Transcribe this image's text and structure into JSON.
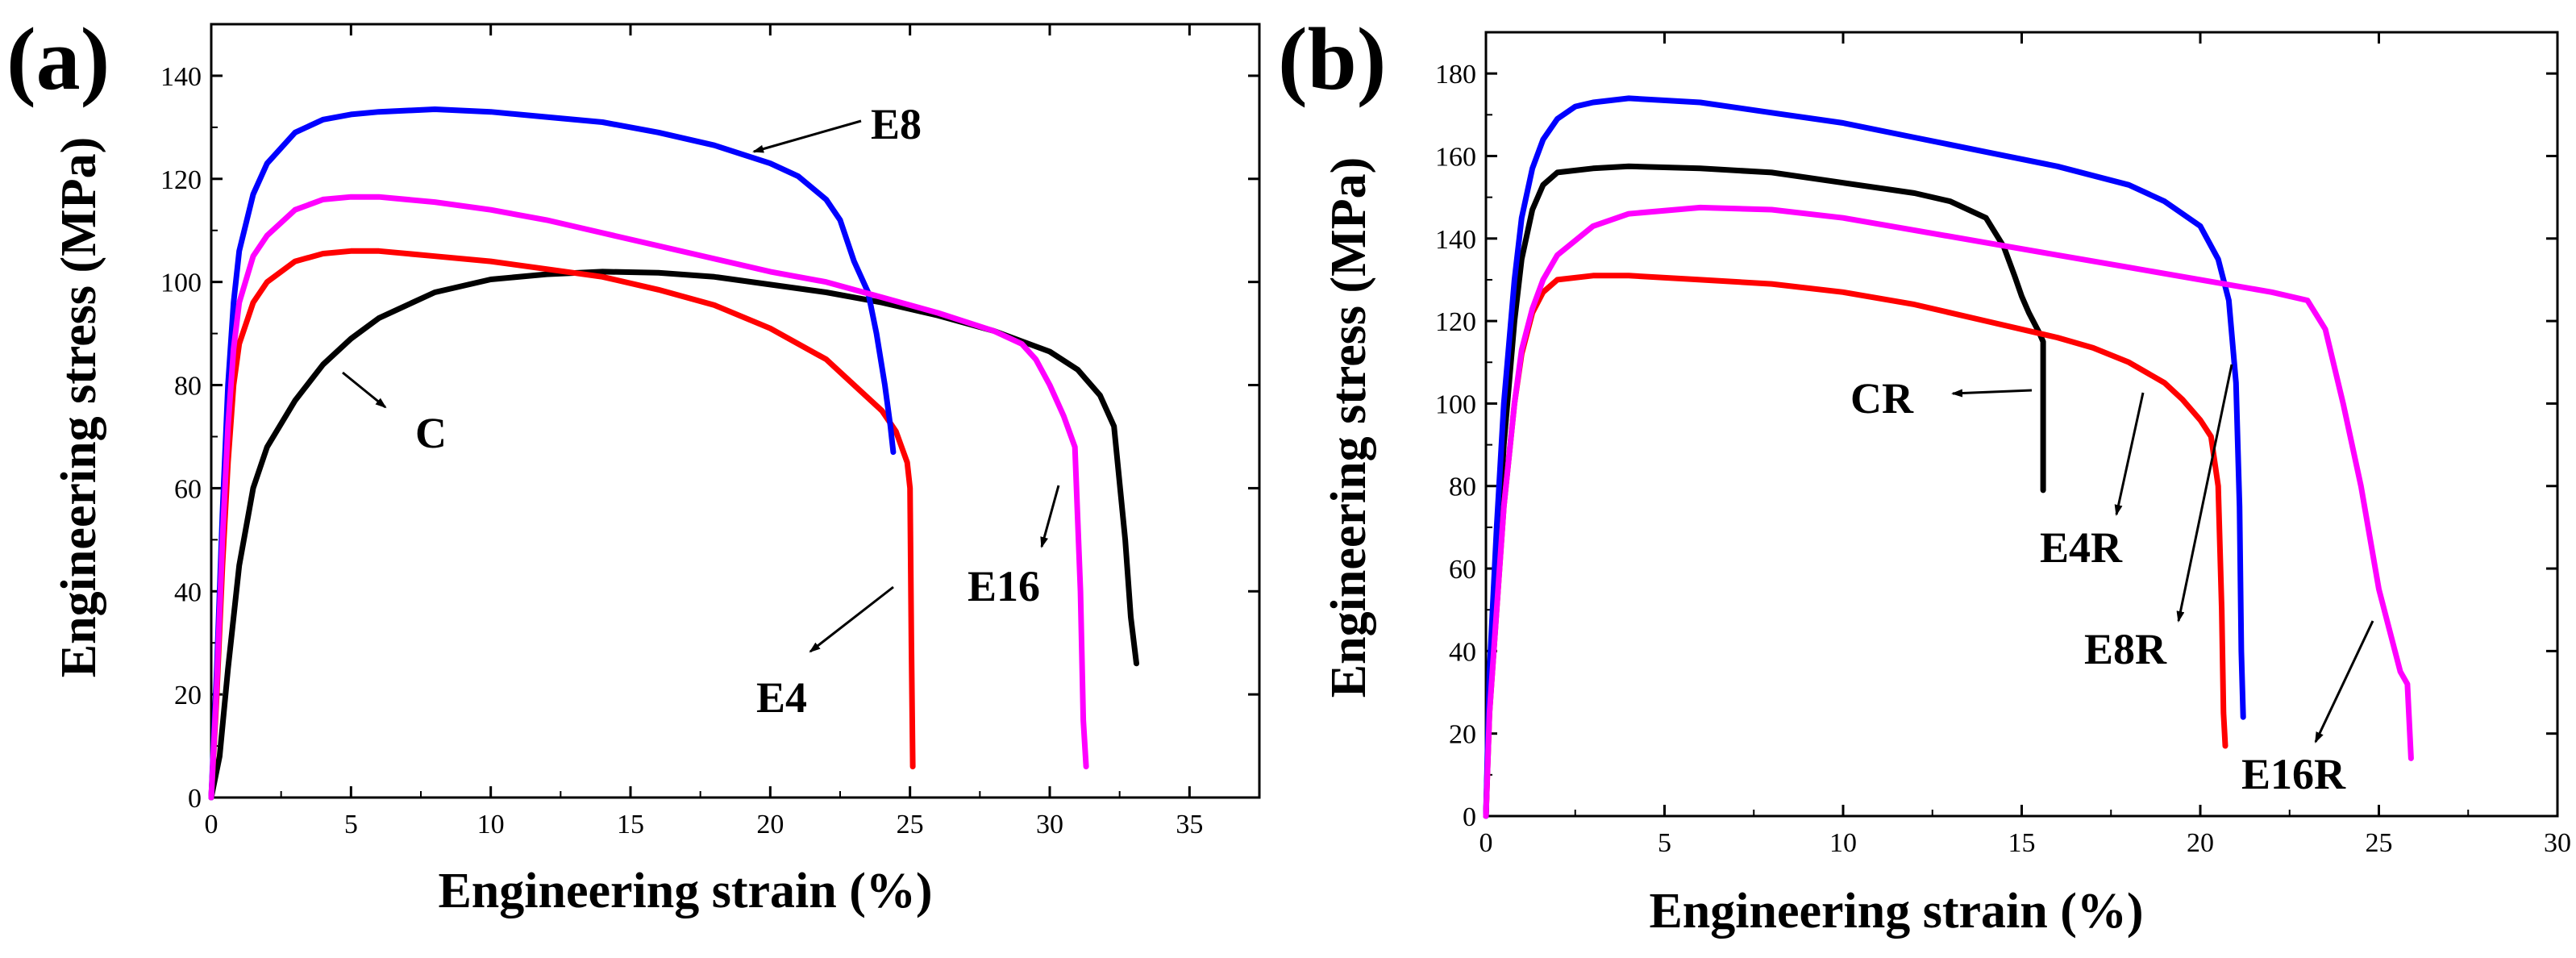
{
  "chart_data": [
    {
      "panel_label": "(a)",
      "type": "line",
      "xlabel": "Engineering strain (%)",
      "ylabel": "Engineering stress (MPa)",
      "xlim": [
        0,
        37.5
      ],
      "ylim": [
        0,
        150
      ],
      "xticks": [
        "0",
        "5",
        "10",
        "15",
        "20",
        "25",
        "30",
        "35"
      ],
      "yticks": [
        "0",
        "20",
        "40",
        "60",
        "80",
        "100",
        "120",
        "140"
      ],
      "grid": false,
      "legend": "none",
      "series": [
        {
          "name": "C",
          "color": "#000000",
          "x": [
            0,
            0.3,
            0.6,
            1,
            1.5,
            2,
            3,
            4,
            5,
            6,
            8,
            10,
            12,
            14,
            16,
            18,
            20,
            22,
            24,
            26,
            28,
            30,
            31,
            31.8,
            32.3,
            32.7,
            32.9,
            33.1
          ],
          "y": [
            0,
            8,
            25,
            45,
            60,
            68,
            77,
            84,
            89,
            93,
            98,
            100.5,
            101.5,
            102,
            101.8,
            101,
            99.5,
            98,
            96,
            93.5,
            90.5,
            86.5,
            83,
            78,
            72,
            50,
            35,
            26
          ]
        },
        {
          "name": "E4",
          "color": "#ff0000",
          "x": [
            0,
            0.2,
            0.4,
            0.6,
            0.8,
            1,
            1.5,
            2,
            3,
            4,
            5,
            6,
            8,
            10,
            12,
            14,
            16,
            18,
            20,
            21,
            22,
            23,
            24,
            24.5,
            24.9,
            25,
            25.05,
            25.1
          ],
          "y": [
            0,
            20,
            45,
            65,
            80,
            88,
            96,
            100,
            104,
            105.5,
            106,
            106,
            105,
            104,
            102.5,
            101,
            98.5,
            95.5,
            91,
            88,
            85,
            80,
            75,
            71,
            65,
            60,
            30,
            6
          ]
        },
        {
          "name": "E8",
          "color": "#0000ff",
          "x": [
            0,
            0.2,
            0.4,
            0.6,
            0.8,
            1,
            1.5,
            2,
            3,
            4,
            5,
            6,
            8,
            10,
            12,
            14,
            16,
            18,
            20,
            21,
            22,
            22.5,
            23,
            23.5,
            23.8,
            24.1,
            24.3,
            24.4
          ],
          "y": [
            0,
            25,
            55,
            80,
            96,
            106,
            117,
            123,
            129,
            131.5,
            132.5,
            133,
            133.5,
            133,
            132,
            131,
            129,
            126.5,
            123,
            120.5,
            116,
            112,
            104,
            98,
            90,
            80,
            72,
            67
          ]
        },
        {
          "name": "E16",
          "color": "#ff00ff",
          "x": [
            0,
            0.2,
            0.4,
            0.6,
            0.8,
            1,
            1.5,
            2,
            3,
            4,
            5,
            6,
            8,
            10,
            12,
            14,
            16,
            18,
            20,
            22,
            24,
            26,
            28,
            29,
            29.5,
            30,
            30.5,
            30.9,
            31.1,
            31.2,
            31.3
          ],
          "y": [
            0,
            22,
            50,
            72,
            87,
            96,
            105,
            109,
            114,
            116,
            116.5,
            116.5,
            115.5,
            114,
            112,
            109.5,
            107,
            104.5,
            102,
            100,
            97,
            94,
            90.5,
            88,
            85,
            80,
            74,
            68,
            40,
            15,
            6
          ]
        }
      ],
      "annotations": [
        {
          "text": "E8",
          "series": "E8"
        },
        {
          "text": "C",
          "series": "C"
        },
        {
          "text": "E16",
          "series": "E16"
        },
        {
          "text": "E4",
          "series": "E4"
        }
      ]
    },
    {
      "panel_label": "(b)",
      "type": "line",
      "xlabel": "Engineering strain (%)",
      "ylabel": "Engineering stress (MPa)",
      "xlim": [
        0,
        30
      ],
      "ylim": [
        0,
        190
      ],
      "xticks": [
        "0",
        "5",
        "10",
        "15",
        "20",
        "25",
        "30"
      ],
      "yticks": [
        "0",
        "20",
        "40",
        "60",
        "80",
        "100",
        "120",
        "140",
        "160",
        "180"
      ],
      "grid": false,
      "legend": "none",
      "series": [
        {
          "name": "CR",
          "color": "#000000",
          "x": [
            0,
            0.1,
            0.3,
            0.5,
            0.8,
            1,
            1.3,
            1.6,
            2,
            3,
            4,
            6,
            8,
            10,
            12,
            13,
            14,
            14.5,
            14.8,
            15,
            15.2,
            15.5,
            15.6,
            15.6
          ],
          "y": [
            0,
            30,
            60,
            90,
            120,
            135,
            147,
            153,
            156,
            157,
            157.5,
            157,
            156,
            153.5,
            151,
            149,
            145,
            138,
            131,
            126,
            122,
            117,
            115,
            79
          ]
        },
        {
          "name": "E4R",
          "color": "#ff0000",
          "x": [
            0,
            0.1,
            0.3,
            0.5,
            0.8,
            1,
            1.3,
            1.6,
            2,
            3,
            4,
            6,
            8,
            10,
            12,
            14,
            16,
            17,
            18,
            19,
            19.5,
            20,
            20.3,
            20.5,
            20.6,
            20.65,
            20.7
          ],
          "y": [
            0,
            25,
            50,
            75,
            100,
            112,
            122,
            127,
            130,
            131,
            131,
            130,
            129,
            127,
            124,
            120,
            116,
            113.5,
            110,
            105,
            101,
            96,
            92,
            80,
            50,
            25,
            17
          ]
        },
        {
          "name": "E8R",
          "color": "#0000ff",
          "x": [
            0,
            0.1,
            0.3,
            0.5,
            0.8,
            1,
            1.3,
            1.6,
            2,
            2.5,
            3,
            4,
            6,
            8,
            10,
            12,
            14,
            16,
            18,
            19,
            20,
            20.5,
            20.8,
            21,
            21.1,
            21.15,
            21.2
          ],
          "y": [
            0,
            35,
            70,
            100,
            130,
            145,
            157,
            164,
            169,
            172,
            173,
            174,
            173,
            170.5,
            168,
            164.5,
            161,
            157.5,
            153,
            149,
            143,
            135,
            125,
            105,
            75,
            40,
            24
          ]
        },
        {
          "name": "E16R",
          "color": "#ff00ff",
          "x": [
            0,
            0.1,
            0.3,
            0.5,
            0.8,
            1,
            1.3,
            1.6,
            2,
            3,
            4,
            6,
            8,
            10,
            12,
            14,
            16,
            18,
            20,
            22,
            23,
            23.5,
            24,
            24.5,
            25,
            25.3,
            25.6,
            25.8,
            25.9
          ],
          "y": [
            0,
            25,
            50,
            75,
            100,
            113,
            123,
            130,
            136,
            143,
            146,
            147.5,
            147,
            145,
            142,
            139,
            136,
            133,
            130,
            127,
            125,
            118,
            100,
            80,
            55,
            45,
            35,
            32,
            14
          ]
        }
      ],
      "annotations": [
        {
          "text": "CR",
          "series": "CR"
        },
        {
          "text": "E4R",
          "series": "E4R"
        },
        {
          "text": "E8R",
          "series": "E8R"
        },
        {
          "text": "E16R",
          "series": "E16R"
        }
      ]
    }
  ]
}
